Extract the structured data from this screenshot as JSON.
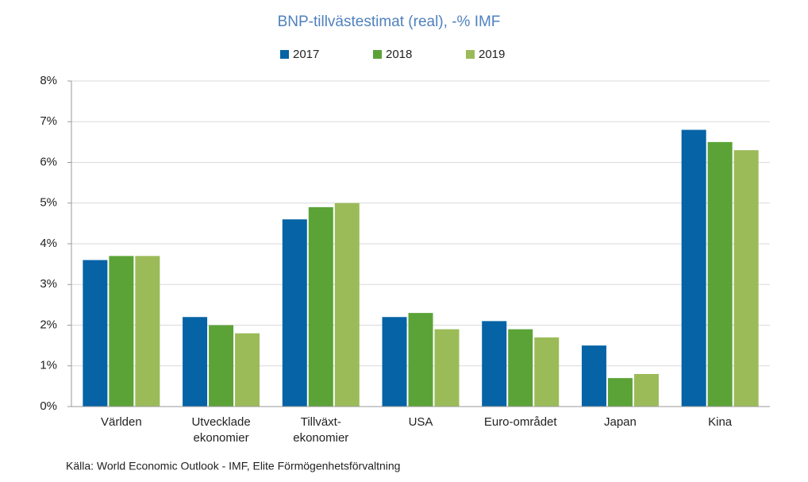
{
  "chart_data": {
    "type": "bar",
    "title": "BNP-tillvästestimat (real), -% IMF",
    "categories": [
      "Världen",
      "Utvecklade\nekonomier",
      "Tillväxt-\nekonomier",
      "USA",
      "Euro-området",
      "Japan",
      "Kina"
    ],
    "series": [
      {
        "name": "2017",
        "color": "#0563a6",
        "values": [
          3.6,
          2.2,
          4.6,
          2.2,
          2.1,
          1.5,
          6.8
        ]
      },
      {
        "name": "2018",
        "color": "#5ca337",
        "values": [
          3.7,
          2.0,
          4.9,
          2.3,
          1.9,
          0.7,
          6.5
        ]
      },
      {
        "name": "2019",
        "color": "#9bbb59",
        "values": [
          3.7,
          1.8,
          5.0,
          1.9,
          1.7,
          0.8,
          6.3
        ]
      }
    ],
    "ylim": [
      0,
      8
    ],
    "yticks": [
      {
        "value": 0,
        "label": "0%"
      },
      {
        "value": 1,
        "label": "1%"
      },
      {
        "value": 2,
        "label": "2%"
      },
      {
        "value": 3,
        "label": "3%"
      },
      {
        "value": 4,
        "label": "4%"
      },
      {
        "value": 5,
        "label": "5%"
      },
      {
        "value": 6,
        "label": "6%"
      },
      {
        "value": 7,
        "label": "7%"
      },
      {
        "value": 8,
        "label": "8%"
      }
    ],
    "grid": true,
    "legend": "top",
    "source": "Källa: World Economic Outlook - IMF, Elite Förmögenhetsförvaltning"
  }
}
